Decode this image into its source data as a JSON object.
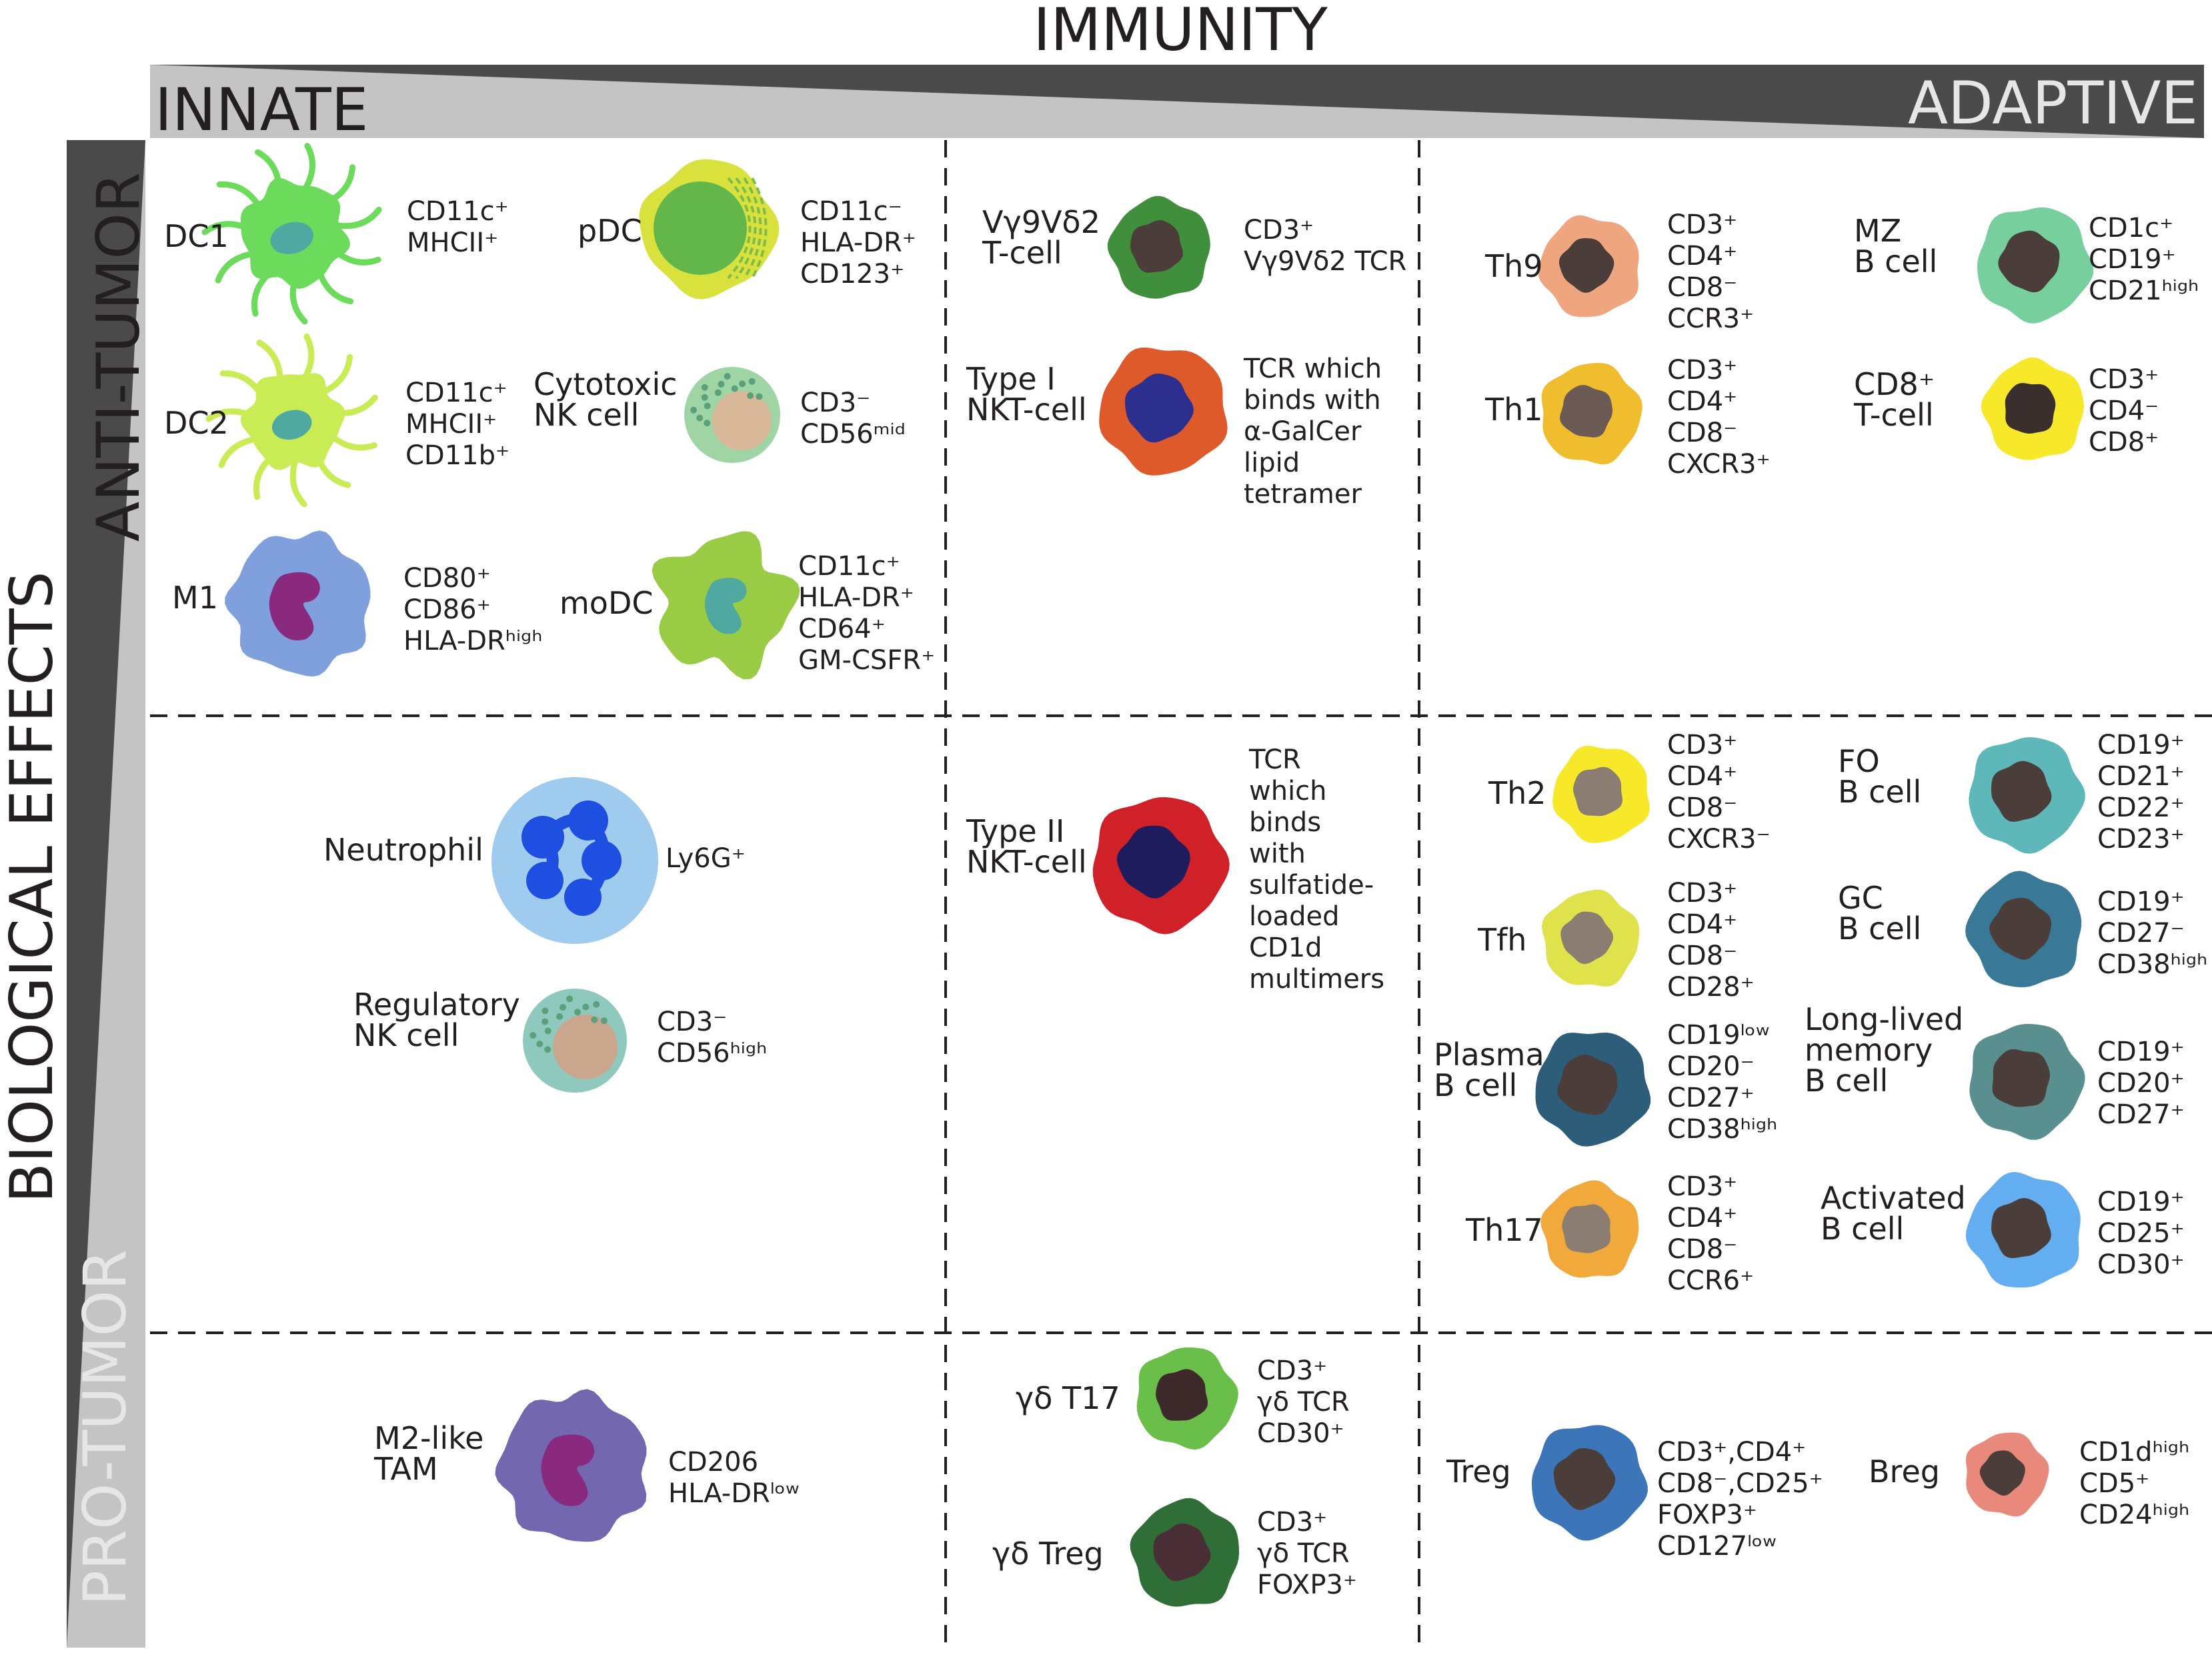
{
  "header": {
    "title": "IMMUNITY",
    "innate": "INNATE",
    "adaptive": "ADAPTIVE"
  },
  "side": {
    "title": "BIOLOGICAL EFFECTS",
    "anti": "ANTI-TUMOR",
    "pro": "PRO-TUMOR"
  },
  "cells": [
    {
      "label": [
        "DC1"
      ],
      "markers": [
        "CD11c⁺",
        "MHCII⁺"
      ],
      "color": "#6cdb5b",
      "nucleus": "#4fa9a0",
      "kind": "dc"
    },
    {
      "label": [
        "pDC"
      ],
      "markers": [
        "CD11c⁻",
        "HLA-DR⁺",
        "CD123⁺"
      ],
      "color": "#d9e23c",
      "nucleus": "#63b64a",
      "kind": "pdc"
    },
    {
      "label": [
        "DC2"
      ],
      "markers": [
        "CD11c⁺",
        "MHCII⁺",
        "CD11b⁺"
      ],
      "color": "#c9ec55",
      "nucleus": "#4fa9a0",
      "kind": "dc"
    },
    {
      "label": [
        "Cytotoxic",
        "NK cell"
      ],
      "markers": [
        "CD3⁻",
        "CD56ᵐⁱᵈ"
      ],
      "color": "#9fd5a5",
      "nucleus": "#d9b799",
      "kind": "nk"
    },
    {
      "label": [
        "M1"
      ],
      "markers": [
        "CD80⁺",
        "CD86⁺",
        "HLA-DRʰⁱᵍʰ"
      ],
      "color": "#7fa0dc",
      "nucleus": "#8a2a7e",
      "kind": "macro"
    },
    {
      "label": [
        "moDC"
      ],
      "markers": [
        "CD11c⁺",
        "HLA-DR⁺",
        "CD64⁺",
        "GM-CSFR⁺"
      ],
      "color": "#9acb44",
      "nucleus": "#4fa9a0",
      "kind": "modc"
    },
    {
      "label": [
        "Vγ9Vδ2",
        "T-cell"
      ],
      "markers": [
        "CD3⁺",
        "Vγ9Vδ2 TCR"
      ],
      "color": "#3f8f3c",
      "nucleus": "#4a3d3a",
      "kind": "round"
    },
    {
      "label": [
        "Type I",
        "NKT-cell"
      ],
      "markers": [
        "TCR which",
        "binds with",
        "α-GalCer",
        "lipid",
        "tetramer"
      ],
      "color": "#df5a2b",
      "nucleus": "#2d2f8e",
      "kind": "round"
    },
    {
      "label": [
        "Type II",
        "NKT-cell"
      ],
      "markers": [
        "TCR",
        "which",
        "binds",
        "with",
        "sulfatide-",
        "loaded",
        "CD1d",
        "multimers"
      ],
      "color": "#d02128",
      "nucleus": "#1e1c5c",
      "kind": "round"
    },
    {
      "label": [
        "Neutrophil"
      ],
      "markers": [
        "Ly6G⁺"
      ],
      "color": "#9ecbee",
      "nucleus": "#1f4fe0",
      "kind": "neutro"
    },
    {
      "label": [
        "Regulatory",
        "NK cell"
      ],
      "markers": [
        "CD3⁻",
        "CD56ʰⁱᵍʰ"
      ],
      "color": "#8fc9bd",
      "nucleus": "#caa68c",
      "kind": "nk"
    },
    {
      "label": [
        "M2-like",
        "TAM"
      ],
      "markers": [
        "CD206",
        "HLA-DRˡᵒʷ"
      ],
      "color": "#7367b0",
      "nucleus": "#8a2a7e",
      "kind": "macro"
    },
    {
      "label": [
        "γδ T17"
      ],
      "markers": [
        "CD3⁺",
        "γδ TCR",
        "CD30⁺"
      ],
      "color": "#6abf4b",
      "nucleus": "#3e2a2a",
      "kind": "round"
    },
    {
      "label": [
        "γδ Treg"
      ],
      "markers": [
        "CD3⁺",
        "γδ TCR",
        "FOXP3⁺"
      ],
      "color": "#2f6e37",
      "nucleus": "#4a2e36",
      "kind": "round"
    },
    {
      "label": [
        "Th9"
      ],
      "markers": [
        "CD3⁺",
        "CD4⁺",
        "CD8⁻",
        "CCR3⁺"
      ],
      "color": "#efa57e",
      "nucleus": "#4a3d3a",
      "kind": "round"
    },
    {
      "label": [
        "MZ",
        "B cell"
      ],
      "markers": [
        "CD1c⁺",
        "CD19⁺",
        "CD21ʰⁱᵍʰ"
      ],
      "color": "#76cf9c",
      "nucleus": "#4a3d3a",
      "kind": "round"
    },
    {
      "label": [
        "Th1"
      ],
      "markers": [
        "CD3⁺",
        "CD4⁺",
        "CD8⁻",
        "CXCR3⁺"
      ],
      "color": "#f0bd2e",
      "nucleus": "#6b5b54",
      "kind": "round"
    },
    {
      "label": [
        "CD8⁺",
        "T-cell"
      ],
      "markers": [
        "CD3⁺",
        "CD4⁻",
        "CD8⁺"
      ],
      "color": "#f7e92a",
      "nucleus": "#3a2f2c",
      "kind": "round"
    },
    {
      "label": [
        "Th2"
      ],
      "markers": [
        "CD3⁺",
        "CD4⁺",
        "CD8⁻",
        "CXCR3⁻"
      ],
      "color": "#f7e92a",
      "nucleus": "#8b7d71",
      "kind": "round"
    },
    {
      "label": [
        "FO",
        "B cell"
      ],
      "markers": [
        "CD19⁺",
        "CD21⁺",
        "CD22⁺",
        "CD23⁺"
      ],
      "color": "#5eb8ba",
      "nucleus": "#4a3d3a",
      "kind": "round"
    },
    {
      "label": [
        "Tfh"
      ],
      "markers": [
        "CD3⁺",
        "CD4⁺",
        "CD8⁻",
        "CD28⁺"
      ],
      "color": "#dfe24a",
      "nucleus": "#8b7d71",
      "kind": "round"
    },
    {
      "label": [
        "GC",
        "B cell"
      ],
      "markers": [
        "CD19⁺",
        "CD27⁻",
        "CD38ʰⁱᵍʰ"
      ],
      "color": "#3a7898",
      "nucleus": "#4a3d3a",
      "kind": "round"
    },
    {
      "label": [
        "Plasma",
        "B cell"
      ],
      "markers": [
        "CD19ˡᵒʷ",
        "CD20⁻",
        "CD27⁺",
        "CD38ʰⁱᵍʰ"
      ],
      "color": "#2d5d78",
      "nucleus": "#4a3d3a",
      "kind": "round"
    },
    {
      "label": [
        "Long-lived",
        "memory",
        "B cell"
      ],
      "markers": [
        "CD19⁺",
        "CD20⁺",
        "CD27⁺"
      ],
      "color": "#5a8f8f",
      "nucleus": "#4a3d3a",
      "kind": "round"
    },
    {
      "label": [
        "Th17"
      ],
      "markers": [
        "CD3⁺",
        "CD4⁺",
        "CD8⁻",
        "CCR6⁺"
      ],
      "color": "#f0a93a",
      "nucleus": "#8b7d71",
      "kind": "round"
    },
    {
      "label": [
        "Activated",
        "B cell"
      ],
      "markers": [
        "CD19⁺",
        "CD25⁺",
        "CD30⁺"
      ],
      "color": "#63aef0",
      "nucleus": "#4a3d3a",
      "kind": "round"
    },
    {
      "label": [
        "Treg"
      ],
      "markers": [
        "CD3⁺,CD4⁺",
        "CD8⁻,CD25⁺",
        "FOXP3⁺",
        "CD127ˡᵒʷ"
      ],
      "color": "#3c75b8",
      "nucleus": "#4a3d3a",
      "kind": "round"
    },
    {
      "label": [
        "Breg"
      ],
      "markers": [
        "CD1dʰⁱᵍʰ",
        "CD5⁺",
        "CD24ʰⁱᵍʰ"
      ],
      "color": "#e8897c",
      "nucleus": "#4a3d3a",
      "kind": "round"
    }
  ]
}
